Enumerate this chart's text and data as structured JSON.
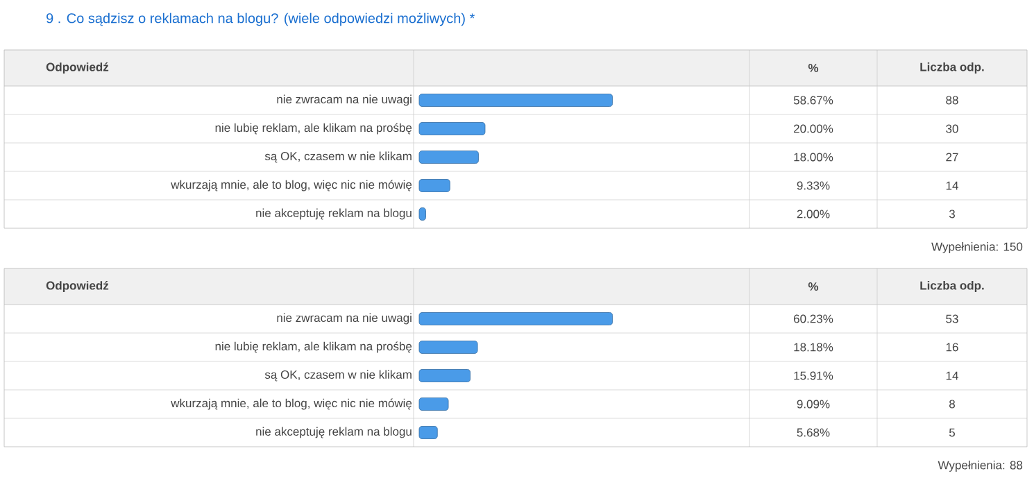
{
  "chart_data": [
    {
      "type": "bar",
      "orientation": "horizontal",
      "title": "9 . Co sądzisz o reklamach na blogu? (wiele odpowiedzi możliwych) *",
      "categories": [
        "nie zwracam na nie uwagi",
        "nie lubię reklam, ale klikam na prośbę",
        "są OK, czasem w nie klikam",
        "wkurzają mnie, ale to blog, więc nic nie mówię",
        "nie akceptuję reklam na blogu"
      ],
      "values": [
        58.67,
        20.0,
        18.0,
        9.33,
        2.0
      ],
      "value_labels": [
        "58.67%",
        "20.00%",
        "18.00%",
        "9.33%",
        "2.00%"
      ],
      "color": "#4a9be8",
      "tick_labels": "y",
      "annotations": [
        "Odpowiedź",
        "%",
        "Liczba odp.",
        "88",
        "30",
        "27",
        "14",
        "3",
        "Wypełnienia: 150"
      ]
    },
    {
      "type": "bar",
      "orientation": "horizontal",
      "categories": [
        "nie zwracam na nie uwagi",
        "nie lubię reklam, ale klikam na prośbę",
        "są OK, czasem w nie klikam",
        "wkurzają mnie, ale to blog, więc nic nie mówię",
        "nie akceptuję reklam na blogu"
      ],
      "values": [
        60.23,
        18.18,
        15.91,
        9.09,
        5.68
      ],
      "value_labels": [
        "60.23%",
        "18.18%",
        "15.91%",
        "9.09%",
        "5.68%"
      ],
      "color": "#4a9be8",
      "tick_labels": "y",
      "annotations": [
        "Odpowiedź",
        "%",
        "Liczba odp.",
        "53",
        "16",
        "14",
        "8",
        "5",
        "Wypełnienia: 88"
      ]
    }
  ]
}
